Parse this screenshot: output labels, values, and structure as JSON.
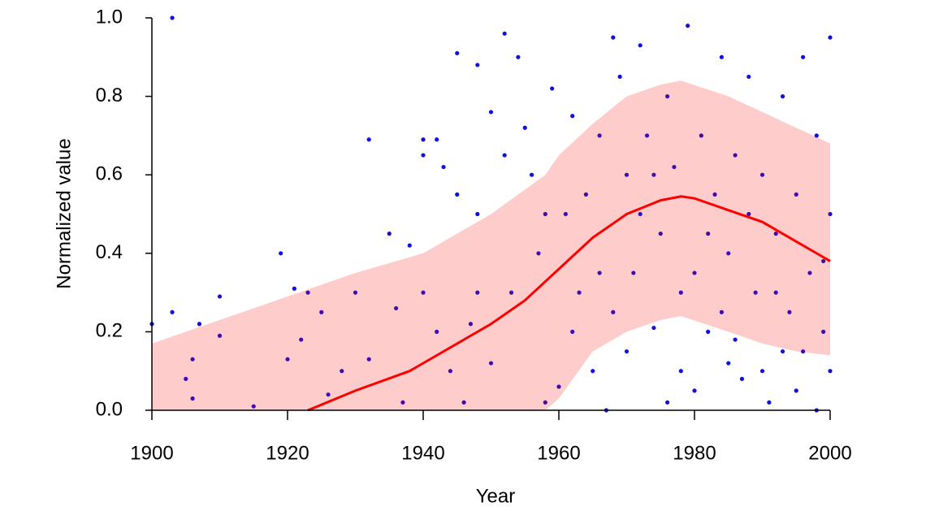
{
  "chart_data": {
    "type": "scatter",
    "x_label": "Year",
    "y_label": "Normalized value",
    "xlim": [
      1900,
      2000
    ],
    "xticks": [
      1900,
      1920,
      1940,
      1960,
      1980,
      2000
    ],
    "ylim": [
      0,
      1
    ],
    "yticks": [
      {
        "value": 0,
        "label": "0.0"
      },
      0.2,
      0.4,
      0.6,
      0.8,
      {
        "value": 1,
        "label": "1.0"
      }
    ],
    "points": {
      "color": "#1010e0",
      "x": [
        1900,
        1903,
        1903,
        1905,
        1906,
        1906,
        1907,
        1910,
        1910,
        1915,
        1919,
        1920,
        1921,
        1922,
        1923,
        1925,
        1926,
        1928,
        1930,
        1932,
        1932,
        1935,
        1936,
        1937,
        1938,
        1940,
        1940,
        1940,
        1942,
        1942,
        1943,
        1945,
        1945,
        1946,
        1948,
        1948,
        1948,
        1950,
        1950,
        1952,
        1952,
        1954,
        1955,
        1956,
        1957,
        1958,
        1959,
        1960,
        1961,
        1962,
        1963,
        1964,
        1965,
        1966,
        1967,
        1968,
        1969,
        1970,
        1970,
        1971,
        1972,
        1973,
        1974,
        1975,
        1976,
        1976,
        1977,
        1978,
        1979,
        1980,
        1980,
        1981,
        1982,
        1983,
        1984,
        1985,
        1985,
        1986,
        1987,
        1988,
        1989,
        1990,
        1990,
        1991,
        1992,
        1993,
        1993,
        1994,
        1995,
        1995,
        1996,
        1997,
        1998,
        1998,
        1999,
        2000,
        2000,
        2000,
        1944,
        1947,
        1953,
        1958,
        1962,
        1966,
        1968,
        1972,
        1974,
        1978,
        1982,
        1984,
        1986,
        1988,
        1992,
        1996,
        1999
      ],
      "y": [
        0.22,
        0.25,
        1.0,
        0.08,
        0.13,
        0.03,
        0.22,
        0.29,
        0.19,
        0.01,
        0.4,
        0.13,
        0.31,
        0.18,
        0.3,
        0.25,
        0.04,
        0.1,
        0.3,
        0.69,
        0.13,
        0.45,
        0.26,
        0.02,
        0.42,
        0.69,
        0.65,
        0.3,
        0.69,
        0.2,
        0.62,
        0.55,
        0.91,
        0.02,
        0.88,
        0.5,
        0.3,
        0.76,
        0.12,
        0.65,
        0.96,
        0.9,
        0.72,
        0.6,
        0.4,
        0.02,
        0.82,
        0.06,
        0.5,
        0.75,
        0.3,
        0.55,
        0.1,
        0.7,
        0.0,
        0.95,
        0.85,
        0.15,
        0.6,
        0.35,
        0.93,
        0.7,
        0.21,
        0.45,
        0.02,
        0.8,
        0.62,
        0.1,
        0.98,
        0.05,
        0.35,
        0.7,
        0.2,
        0.55,
        0.9,
        0.12,
        0.4,
        0.65,
        0.08,
        0.85,
        0.3,
        0.1,
        0.6,
        0.02,
        0.45,
        0.8,
        0.15,
        0.25,
        0.05,
        0.55,
        0.9,
        0.35,
        0.0,
        0.7,
        0.2,
        0.5,
        0.95,
        0.1,
        0.1,
        0.22,
        0.3,
        0.5,
        0.2,
        0.35,
        0.25,
        0.5,
        0.6,
        0.3,
        0.45,
        0.25,
        0.18,
        0.5,
        0.3,
        0.15,
        0.38
      ]
    },
    "band": {
      "color": "#ff0000",
      "opacity": 0.2,
      "x": [
        1900,
        1910,
        1920,
        1930,
        1940,
        1950,
        1958,
        1960,
        1965,
        1970,
        1975,
        1978,
        1985,
        1990,
        1995,
        2000
      ],
      "upper": [
        0.17,
        0.23,
        0.29,
        0.35,
        0.4,
        0.5,
        0.6,
        0.65,
        0.73,
        0.8,
        0.83,
        0.84,
        0.8,
        0.76,
        0.72,
        0.68
      ],
      "lower": [
        0,
        0,
        0,
        0,
        0,
        0,
        0,
        0.03,
        0.15,
        0.2,
        0.23,
        0.24,
        0.2,
        0.17,
        0.15,
        0.14
      ]
    },
    "trend": {
      "color": "#ff0000",
      "x": [
        1923,
        1930,
        1938,
        1945,
        1950,
        1955,
        1960,
        1965,
        1970,
        1975,
        1978,
        1980,
        1985,
        1990,
        1995,
        2000
      ],
      "y": [
        0,
        0.05,
        0.1,
        0.17,
        0.22,
        0.28,
        0.36,
        0.44,
        0.5,
        0.535,
        0.545,
        0.54,
        0.51,
        0.48,
        0.43,
        0.38
      ]
    }
  }
}
